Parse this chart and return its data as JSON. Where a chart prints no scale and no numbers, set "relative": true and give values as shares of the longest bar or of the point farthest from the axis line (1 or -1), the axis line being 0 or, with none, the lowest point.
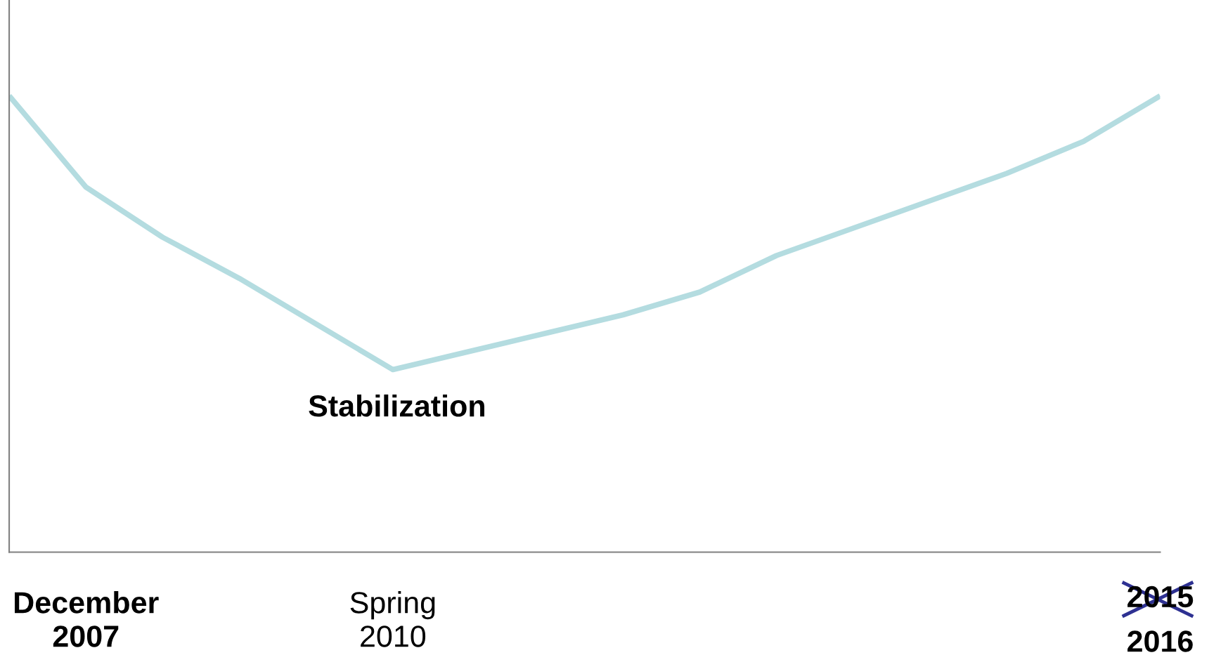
{
  "chart_data": {
    "type": "line",
    "relative": true,
    "categories": [
      null,
      "December\n2007",
      null,
      null,
      null,
      "Spring\n2010",
      null,
      null,
      null,
      null,
      null,
      null,
      null,
      null,
      null,
      "2016"
    ],
    "series": [
      {
        "color": "#b4dce0",
        "values": [
          1,
          0.8,
          0.69,
          0.6,
          0.5,
          0.4,
          0.44,
          0.48,
          0.52,
          0.57,
          0.65,
          0.71,
          0.77,
          0.83,
          0.9,
          1.0
        ]
      }
    ],
    "annotations": [
      "Stabilization",
      "2015"
    ],
    "grid": false,
    "legend": false
  }
}
